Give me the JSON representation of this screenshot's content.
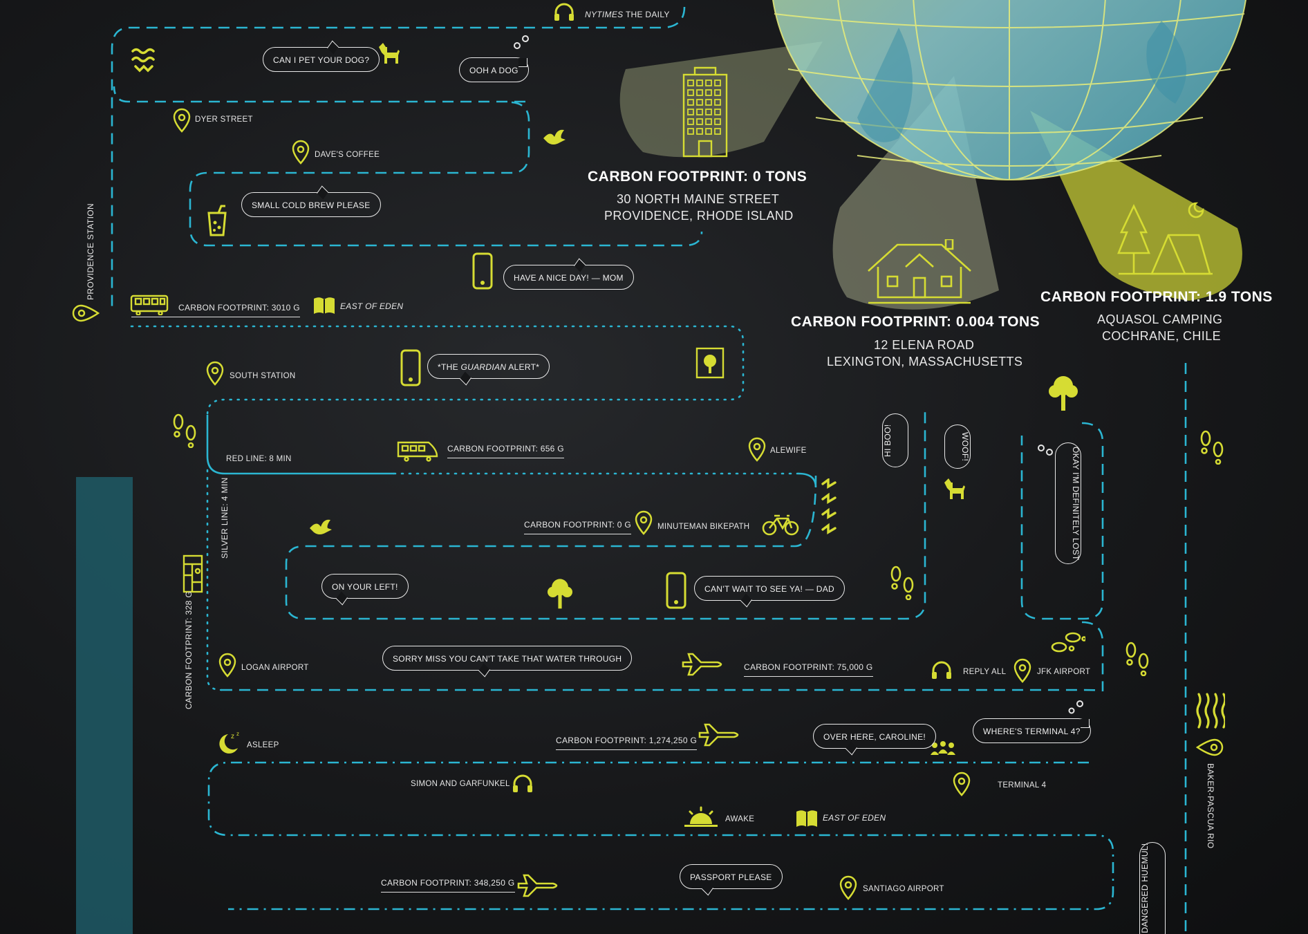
{
  "colors": {
    "background": "#151618",
    "route_cyan": "#2bb6d2",
    "accent_yellow": "#d6dc33",
    "text": "#e6e6e6",
    "teal_bar": "#1f5a66"
  },
  "header": {
    "podcast_label_em": "NYTIMES",
    "podcast_label_rest": "THE DAILY"
  },
  "destinations": [
    {
      "title": "CARBON FOOTPRINT: 0 TONS",
      "line1": "30 NORTH MAINE STREET",
      "line2": "PROVIDENCE, RHODE ISLAND",
      "icon": "office-building-icon"
    },
    {
      "title": "CARBON FOOTPRINT: 0.004 TONS",
      "line1": "12 ELENA ROAD",
      "line2": "LEXINGTON, MASSACHUSETTS",
      "icon": "house-icon"
    },
    {
      "title": "CARBON FOOTPRINT: 1.9 TONS",
      "line1": "AQUASOL CAMPING",
      "line2": "COCHRANE, CHILE",
      "icon": "tent-camping-icon"
    }
  ],
  "places": {
    "dyer_street": "DYER STREET",
    "daves_coffee": "DAVE'S COFFEE",
    "south_station": "SOUTH STATION",
    "alewife": "ALEWIFE",
    "minuteman": "MINUTEMAN BIKEPATH",
    "logan": "LOGAN AIRPORT",
    "jfk": "JFK AIRPORT",
    "terminal4": "TERMINAL 4",
    "santiago": "SANTIAGO AIRPORT",
    "providence_station": "PROVIDENCE STATION",
    "baker_pascua": "BAKER-PASCUA RIO"
  },
  "bubbles": {
    "pet_dog": "CAN I PET YOUR DOG?",
    "ooh_dog": "OOH A DOG",
    "cold_brew": "SMALL COLD BREW PLEASE",
    "mom": "HAVE A NICE DAY! — MOM",
    "guardian_pre": "*THE ",
    "guardian_em": "GUARDIAN",
    "guardian_post": " ALERT*",
    "hi_boo": "HI BOO!",
    "woof": "WOOF!",
    "lost": "OKAY I'M DEFINITELY LOST",
    "on_your_left": "ON YOUR LEFT!",
    "dad": "CAN'T WAIT TO SEE YA! — DAD",
    "water": "SORRY MISS YOU CAN'T TAKE THAT WATER THROUGH",
    "caroline": "OVER HERE, CAROLINE!",
    "terminal_q": "WHERE'S TERMINAL 4?",
    "passport": "PASSPORT PLEASE",
    "huemul": "ENDANGERED HUEMUL!"
  },
  "footprints": {
    "train": "CARBON FOOTPRINT: 3010 G",
    "red_line": "CARBON FOOTPRINT: 656 G",
    "bike": "CARBON FOOTPRINT: 0 G",
    "silver": "CARBON FOOTPRINT: 328 G",
    "flight1": "CARBON FOOTPRINT: 75,000 G",
    "flight2": "CARBON FOOTPRINT: 1,274,250 G",
    "flight3": "CARBON FOOTPRINT: 348,250 G"
  },
  "misc": {
    "book": "EAST OF EDEN",
    "red_line_time": "RED LINE: 8 MIN",
    "silver_line_time": "SILVER LINE: 4 MIN",
    "reply_all": "REPLY ALL",
    "asleep": "ASLEEP",
    "awake": "AWAKE",
    "simon": "SIMON AND GARFUNKEL"
  }
}
